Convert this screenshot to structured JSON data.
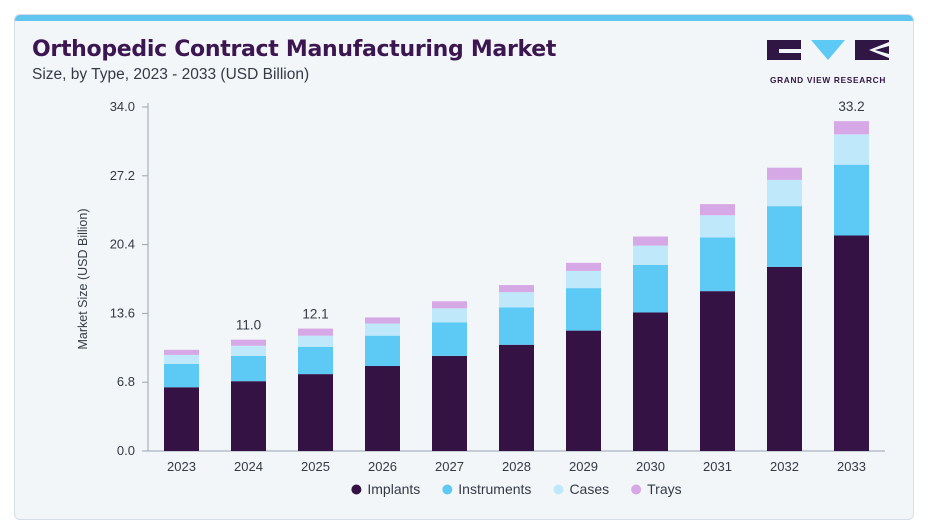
{
  "header": {
    "title": "Orthopedic Contract Manufacturing Market",
    "subtitle": "Size, by Type, 2023 - 2033 (USD Billion)"
  },
  "logo": {
    "text": "GRAND VIEW RESEARCH",
    "icon": "grand-view-research-logo"
  },
  "colors": {
    "title": "#3c1650",
    "top_bar": "#62c5f0",
    "implants": "#351244",
    "instruments": "#5dc9f5",
    "cases": "#bfe8fb",
    "trays": "#d6a8e6"
  },
  "chart_data": {
    "type": "bar",
    "stacked": true,
    "categories": [
      "2023",
      "2024",
      "2025",
      "2026",
      "2027",
      "2028",
      "2029",
      "2030",
      "2031",
      "2032",
      "2033"
    ],
    "series": [
      {
        "name": "Implants",
        "color": "#351244",
        "values": [
          6.3,
          6.9,
          7.6,
          8.4,
          9.4,
          10.5,
          11.9,
          13.7,
          15.8,
          18.2,
          21.3
        ]
      },
      {
        "name": "Instruments",
        "color": "#5dc9f5",
        "values": [
          2.3,
          2.5,
          2.7,
          3.0,
          3.3,
          3.7,
          4.2,
          4.7,
          5.3,
          6.0,
          7.0
        ]
      },
      {
        "name": "Cases",
        "color": "#bfe8fb",
        "values": [
          0.9,
          1.0,
          1.1,
          1.2,
          1.4,
          1.5,
          1.7,
          1.9,
          2.2,
          2.6,
          3.0
        ]
      },
      {
        "name": "Trays",
        "color": "#d6a8e6",
        "values": [
          0.5,
          0.6,
          0.7,
          0.6,
          0.7,
          0.7,
          0.8,
          0.9,
          1.1,
          1.2,
          1.3
        ]
      }
    ],
    "data_labels": [
      {
        "category": "2024",
        "text": "11.0"
      },
      {
        "category": "2025",
        "text": "12.1"
      },
      {
        "category": "2033",
        "text": "33.2"
      }
    ],
    "ylabel": "Market Size (USD Billion)",
    "xlabel": "",
    "ylim": [
      0,
      34.0
    ],
    "yticks": [
      "0.0",
      "6.8",
      "13.6",
      "20.4",
      "27.2",
      "34.0"
    ],
    "grid": false,
    "legend_position": "bottom-center"
  }
}
